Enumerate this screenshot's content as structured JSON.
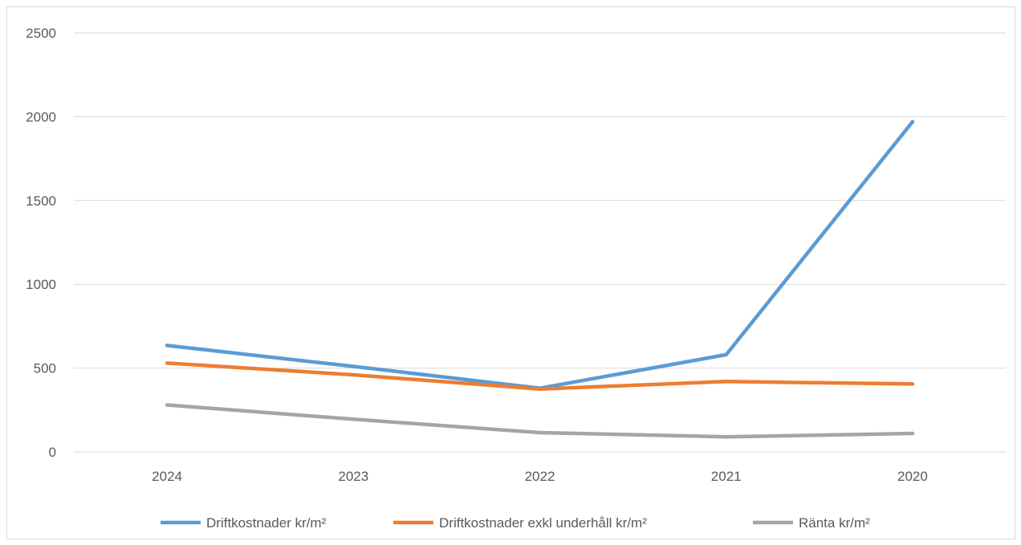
{
  "chart_data": {
    "type": "line",
    "title": "",
    "xlabel": "",
    "ylabel": "",
    "categories": [
      "2024",
      "2023",
      "2022",
      "2021",
      "2020"
    ],
    "ylim": [
      0,
      2500
    ],
    "yticks": [
      0,
      500,
      1000,
      1500,
      2000,
      2500
    ],
    "grid": true,
    "legend_position": "bottom",
    "series": [
      {
        "name": "Driftkostnader kr/m²",
        "color": "#5b9bd5",
        "values": [
          635,
          510,
          380,
          580,
          1970
        ]
      },
      {
        "name": "Driftkostnader exkl underhåll kr/m²",
        "color": "#ed7d31",
        "values": [
          530,
          460,
          375,
          420,
          405
        ]
      },
      {
        "name": "Ränta kr/m²",
        "color": "#a5a5a5",
        "values": [
          280,
          195,
          115,
          90,
          110
        ]
      }
    ]
  }
}
